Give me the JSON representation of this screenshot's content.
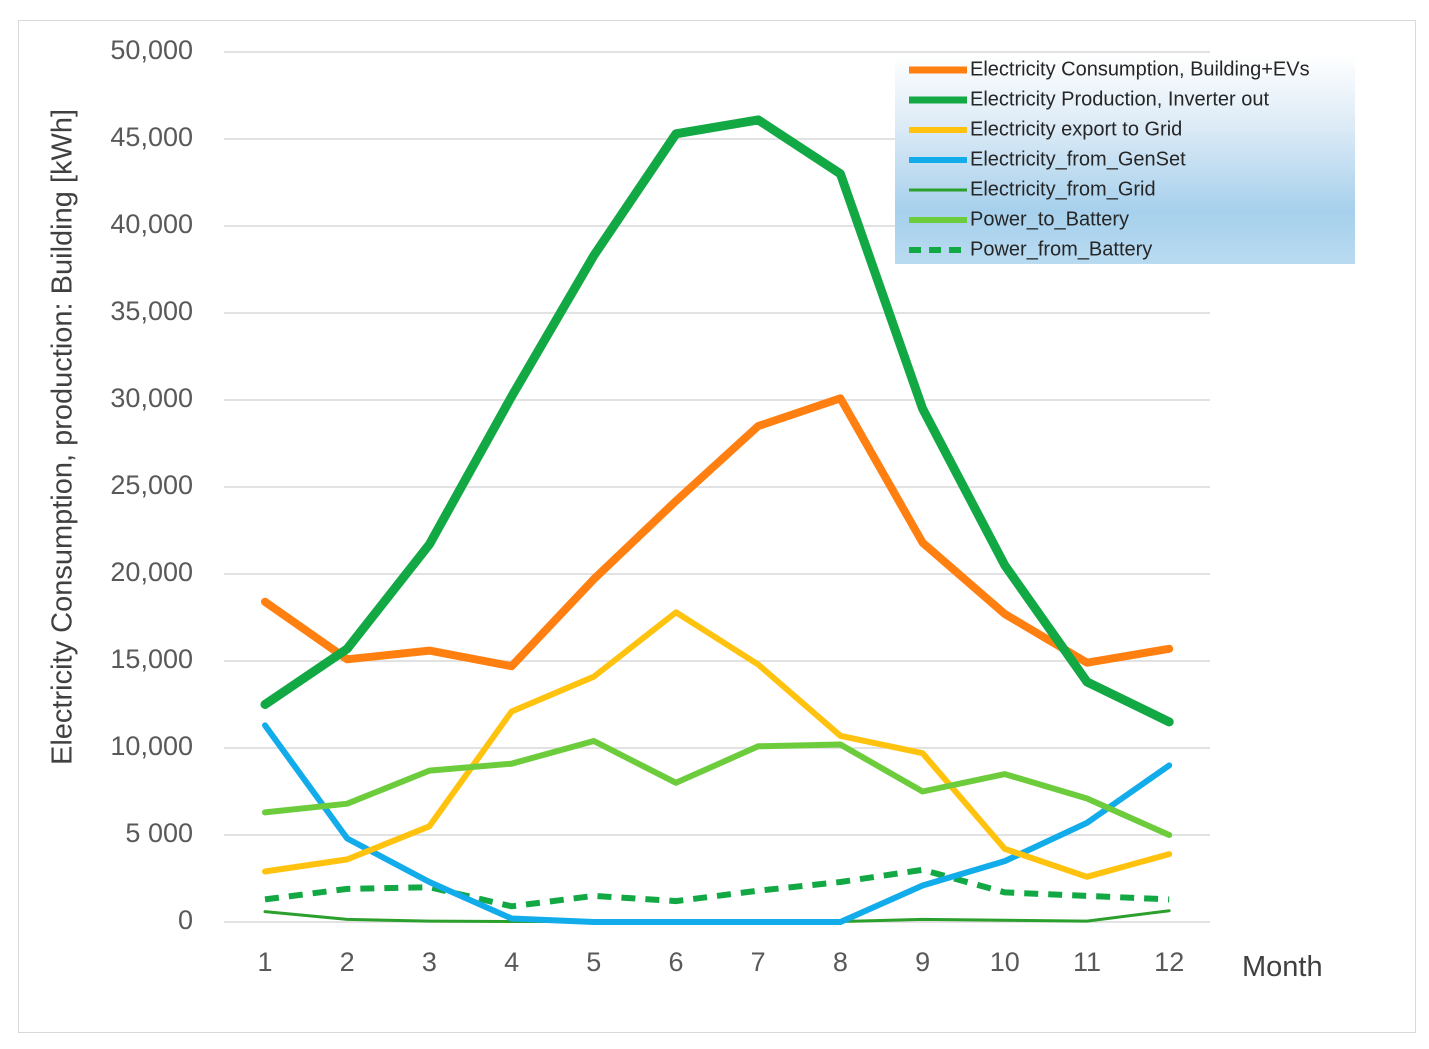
{
  "chart_data": {
    "type": "line",
    "title": "",
    "xlabel": "Month",
    "ylabel": "Electricity Consumption, production: Building [kWh]",
    "categories": [
      "1",
      "2",
      "3",
      "4",
      "5",
      "6",
      "7",
      "8",
      "9",
      "10",
      "11",
      "12"
    ],
    "y_ticks": [
      0,
      5000,
      10000,
      15000,
      20000,
      25000,
      30000,
      35000,
      40000,
      45000,
      50000
    ],
    "y_tick_labels": [
      "0",
      "5 000",
      "10,000",
      "15,000",
      "20,000",
      "25,000",
      "30,000",
      "35,000",
      "40,000",
      "45,000",
      "50,000"
    ],
    "ylim": [
      0,
      50000
    ],
    "grid": "horizontal",
    "legend_position": "top-right",
    "series": [
      {
        "name": "Electricity Consumption, Building+EVs",
        "color": "#FF7F11",
        "style": "solid",
        "weight": "heavy",
        "values": [
          18400,
          15100,
          15600,
          14700,
          19700,
          24200,
          28500,
          30100,
          21800,
          17700,
          14900,
          15700
        ]
      },
      {
        "name": "Electricity Production, Inverter out",
        "color": "#12A944",
        "style": "solid",
        "weight": "extra-heavy",
        "values": [
          12500,
          15700,
          21700,
          30200,
          38300,
          45300,
          46100,
          43000,
          29500,
          20500,
          13800,
          11500
        ]
      },
      {
        "name": "Electricity export to Grid",
        "color": "#FFC30F",
        "style": "solid",
        "weight": "medium",
        "values": [
          2900,
          3600,
          5500,
          12100,
          14100,
          17800,
          14800,
          10700,
          9700,
          4200,
          2600,
          3900
        ]
      },
      {
        "name": "Electricity_from_GenSet",
        "color": "#12ACEB",
        "style": "solid",
        "weight": "medium",
        "values": [
          11300,
          4800,
          2300,
          200,
          0,
          0,
          0,
          0,
          2100,
          3500,
          5700,
          9000
        ]
      },
      {
        "name": "Electricity_from_Grid",
        "color": "#2CA02C",
        "style": "solid",
        "weight": "thin",
        "values": [
          600,
          150,
          50,
          30,
          30,
          30,
          30,
          30,
          150,
          100,
          50,
          650
        ]
      },
      {
        "name": "Power_to_Battery",
        "color": "#6DCC3C",
        "style": "solid",
        "weight": "medium",
        "values": [
          6300,
          6800,
          8700,
          9100,
          10400,
          8000,
          10100,
          10200,
          7500,
          8500,
          7100,
          5000
        ]
      },
      {
        "name": "Power_from_Battery",
        "color": "#12A944",
        "style": "dashed",
        "weight": "medium",
        "values": [
          1300,
          1900,
          2000,
          900,
          1500,
          1200,
          1800,
          2300,
          3000,
          1700,
          1500,
          1300
        ]
      }
    ]
  }
}
